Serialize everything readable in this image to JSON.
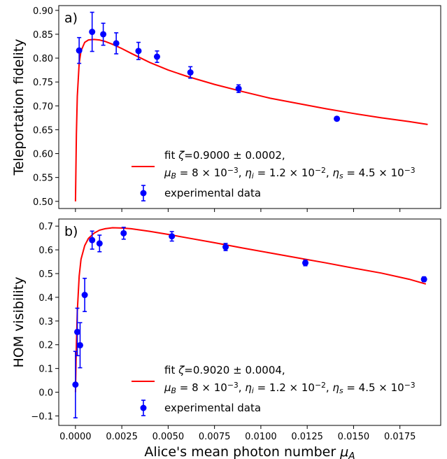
{
  "chart_data": [
    {
      "type": "scatter",
      "panel_label": "a)",
      "ylabel": "Teleportation fidelity",
      "xlabel": "",
      "xlim": [
        -0.0009,
        0.0197
      ],
      "ylim": [
        0.485,
        0.91
      ],
      "yticks": [
        0.5,
        0.55,
        0.6,
        0.65,
        0.7,
        0.75,
        0.8,
        0.85,
        0.9
      ],
      "ytick_labels": [
        "0.50",
        "0.55",
        "0.60",
        "0.65",
        "0.70",
        "0.75",
        "0.80",
        "0.85",
        "0.90"
      ],
      "xticks": [
        0.0,
        0.0025,
        0.005,
        0.0075,
        0.01,
        0.0125,
        0.015,
        0.0175
      ],
      "grid": false,
      "legend_position": "lower-right",
      "series": [
        {
          "name": "experimental data",
          "kind": "errorbar",
          "color": "#0000ff",
          "x": [
            0.0002,
            0.0009,
            0.0015,
            0.0022,
            0.0034,
            0.0044,
            0.0062,
            0.0088,
            0.0141
          ],
          "y": [
            0.816,
            0.855,
            0.85,
            0.831,
            0.815,
            0.803,
            0.77,
            0.736,
            0.673
          ],
          "err": [
            0.027,
            0.041,
            0.023,
            0.022,
            0.018,
            0.012,
            0.012,
            0.008,
            0.004
          ]
        },
        {
          "name": "fit",
          "kind": "line",
          "color": "#ff0000",
          "x": [
            0.0,
            5e-05,
            0.0001,
            0.0002,
            0.0003,
            0.0005,
            0.0007,
            0.001,
            0.0013,
            0.0016,
            0.002,
            0.0025,
            0.003,
            0.004,
            0.005,
            0.006,
            0.0075,
            0.009,
            0.0105,
            0.012,
            0.0135,
            0.015,
            0.0165,
            0.018,
            0.019
          ],
          "y": [
            0.5,
            0.64,
            0.72,
            0.79,
            0.815,
            0.833,
            0.838,
            0.839,
            0.838,
            0.835,
            0.829,
            0.82,
            0.81,
            0.791,
            0.775,
            0.762,
            0.745,
            0.73,
            0.716,
            0.705,
            0.694,
            0.684,
            0.675,
            0.667,
            0.661
          ]
        }
      ],
      "legend": {
        "fit_prefix": "fit ",
        "fit_zeta": "ζ=0.9000 ± 0.0002,",
        "fit_params": "μB = 8 × 10⁻³, ηi = 1.2 × 10⁻², ηs = 4.5 × 10⁻³",
        "data_label": "experimental data"
      }
    },
    {
      "type": "scatter",
      "panel_label": "b)",
      "ylabel": "HOM visibility",
      "xlabel": "Alice's mean photon number μA",
      "xlim": [
        -0.0009,
        0.0197
      ],
      "ylim": [
        -0.14,
        0.73
      ],
      "yticks": [
        -0.1,
        0.0,
        0.1,
        0.2,
        0.3,
        0.4,
        0.5,
        0.6,
        0.7
      ],
      "ytick_labels": [
        "−0.1",
        "0.0",
        "0.1",
        "0.2",
        "0.3",
        "0.4",
        "0.5",
        "0.6",
        "0.7"
      ],
      "xticks": [
        0.0,
        0.0025,
        0.005,
        0.0075,
        0.01,
        0.0125,
        0.015,
        0.0175
      ],
      "xtick_labels": [
        "0.0000",
        "0.0025",
        "0.0050",
        "0.0075",
        "0.0100",
        "0.0125",
        "0.0150",
        "0.0175"
      ],
      "grid": false,
      "legend_position": "lower-right",
      "series": [
        {
          "name": "experimental data",
          "kind": "errorbar",
          "color": "#0000ff",
          "x": [
            0.0,
            0.0001,
            0.00025,
            0.0005,
            0.0009,
            0.0013,
            0.0026,
            0.0052,
            0.0081,
            0.0124,
            0.0188
          ],
          "y": [
            0.032,
            0.254,
            0.198,
            0.41,
            0.641,
            0.627,
            0.67,
            0.657,
            0.612,
            0.545,
            0.476
          ],
          "err": [
            0.14,
            0.1,
            0.095,
            0.07,
            0.038,
            0.035,
            0.025,
            0.02,
            0.015,
            0.012,
            0.01
          ]
        },
        {
          "name": "fit",
          "kind": "line",
          "color": "#ff0000",
          "x": [
            0.0,
            5e-05,
            0.0001,
            0.0002,
            0.0003,
            0.0005,
            0.0007,
            0.001,
            0.0013,
            0.0016,
            0.002,
            0.0025,
            0.003,
            0.004,
            0.005,
            0.006,
            0.0075,
            0.009,
            0.0105,
            0.012,
            0.0135,
            0.015,
            0.0165,
            0.018,
            0.0189
          ],
          "y": [
            0.0,
            0.2,
            0.34,
            0.49,
            0.56,
            0.618,
            0.648,
            0.67,
            0.683,
            0.689,
            0.693,
            0.692,
            0.689,
            0.678,
            0.665,
            0.651,
            0.63,
            0.608,
            0.587,
            0.566,
            0.545,
            0.523,
            0.502,
            0.476,
            0.456
          ]
        }
      ],
      "legend": {
        "fit_prefix": "fit ",
        "fit_zeta": "ζ=0.9020 ± 0.0004,",
        "fit_params": "μB = 8 × 10⁻³, ηi = 1.2 × 10⁻², ηs = 4.5 × 10⁻³",
        "data_label": "experimental data"
      }
    }
  ]
}
